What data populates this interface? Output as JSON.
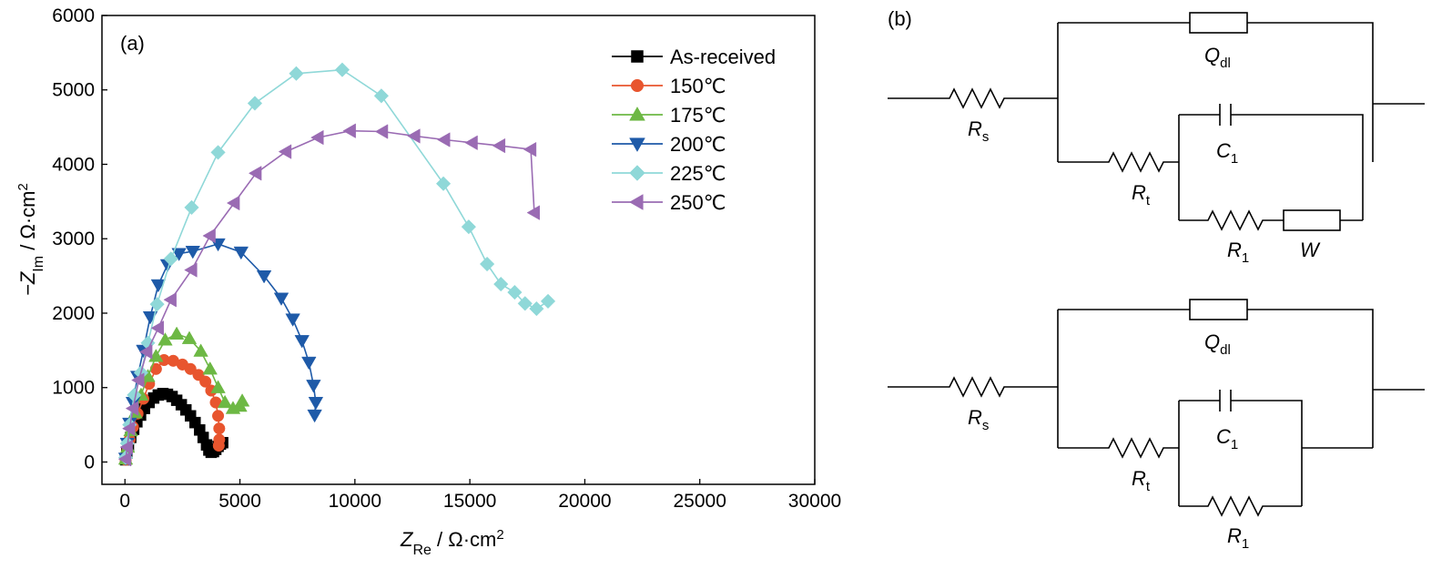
{
  "chart_data": {
    "type": "scatter",
    "panel_label": "(a)",
    "xlabel": {
      "main": "Z",
      "sub": "Re",
      "unit": " / Ω·cm",
      "sup": "2"
    },
    "ylabel": {
      "prefix": "−Z",
      "sub": "Im",
      "unit": " / Ω·cm",
      "sup": "2"
    },
    "xlim": [
      -1000,
      30000
    ],
    "ylim": [
      -300,
      6000
    ],
    "xticks": [
      0,
      5000,
      10000,
      15000,
      20000,
      25000,
      30000
    ],
    "xtick_labels": [
      "0",
      "5000",
      "10000",
      "15000",
      "20000",
      "25000",
      "30000"
    ],
    "yticks": [
      0,
      1000,
      2000,
      3000,
      4000,
      5000,
      6000
    ],
    "ytick_labels": [
      "0",
      "1000",
      "2000",
      "3000",
      "4000",
      "5000",
      "6000"
    ],
    "legend_position": "top-right",
    "series": [
      {
        "name": "As-received",
        "marker": "square",
        "color": "#000000",
        "points": [
          [
            30,
            30
          ],
          [
            80,
            120
          ],
          [
            150,
            220
          ],
          [
            250,
            330
          ],
          [
            380,
            440
          ],
          [
            520,
            540
          ],
          [
            680,
            630
          ],
          [
            850,
            720
          ],
          [
            1050,
            800
          ],
          [
            1250,
            860
          ],
          [
            1450,
            900
          ],
          [
            1650,
            920
          ],
          [
            1850,
            910
          ],
          [
            2050,
            880
          ],
          [
            2250,
            830
          ],
          [
            2450,
            770
          ],
          [
            2650,
            700
          ],
          [
            2850,
            620
          ],
          [
            3050,
            530
          ],
          [
            3250,
            430
          ],
          [
            3400,
            330
          ],
          [
            3550,
            230
          ],
          [
            3650,
            160
          ],
          [
            3750,
            130
          ],
          [
            3850,
            140
          ],
          [
            3950,
            170
          ],
          [
            4050,
            210
          ],
          [
            4150,
            240
          ],
          [
            4250,
            260
          ]
        ]
      },
      {
        "name": "150℃",
        "marker": "circle",
        "color": "#E8552E",
        "points": [
          [
            30,
            30
          ],
          [
            100,
            150
          ],
          [
            200,
            300
          ],
          [
            350,
            470
          ],
          [
            550,
            650
          ],
          [
            800,
            850
          ],
          [
            1050,
            1050
          ],
          [
            1350,
            1250
          ],
          [
            1700,
            1370
          ],
          [
            2100,
            1360
          ],
          [
            2500,
            1310
          ],
          [
            2850,
            1250
          ],
          [
            3200,
            1170
          ],
          [
            3500,
            1080
          ],
          [
            3750,
            960
          ],
          [
            3950,
            800
          ],
          [
            4050,
            620
          ],
          [
            4100,
            450
          ],
          [
            4100,
            300
          ],
          [
            4080,
            220
          ]
        ]
      },
      {
        "name": "175℃",
        "marker": "triangle-up",
        "color": "#6DB844",
        "points": [
          [
            30,
            40
          ],
          [
            120,
            200
          ],
          [
            250,
            420
          ],
          [
            450,
            660
          ],
          [
            700,
            900
          ],
          [
            1000,
            1150
          ],
          [
            1350,
            1420
          ],
          [
            1750,
            1640
          ],
          [
            2250,
            1720
          ],
          [
            2800,
            1660
          ],
          [
            3300,
            1490
          ],
          [
            3700,
            1250
          ],
          [
            4050,
            1000
          ],
          [
            4350,
            800
          ],
          [
            4700,
            720
          ],
          [
            5000,
            750
          ],
          [
            5100,
            820
          ]
        ]
      },
      {
        "name": "200℃",
        "marker": "triangle-down",
        "color": "#1E5AA8",
        "points": [
          [
            30,
            50
          ],
          [
            100,
            250
          ],
          [
            200,
            520
          ],
          [
            350,
            800
          ],
          [
            550,
            1150
          ],
          [
            800,
            1500
          ],
          [
            1100,
            1950
          ],
          [
            1450,
            2380
          ],
          [
            1850,
            2650
          ],
          [
            2350,
            2800
          ],
          [
            2950,
            2830
          ],
          [
            4050,
            2930
          ],
          [
            5050,
            2820
          ],
          [
            6050,
            2500
          ],
          [
            6800,
            2200
          ],
          [
            7300,
            1920
          ],
          [
            7700,
            1630
          ],
          [
            8000,
            1340
          ],
          [
            8200,
            1030
          ],
          [
            8300,
            800
          ],
          [
            8250,
            630
          ]
        ]
      },
      {
        "name": "225℃",
        "marker": "diamond",
        "color": "#8FD8D8",
        "points": [
          [
            30,
            60
          ],
          [
            100,
            250
          ],
          [
            200,
            500
          ],
          [
            400,
            900
          ],
          [
            700,
            1200
          ],
          [
            1000,
            1600
          ],
          [
            1400,
            2120
          ],
          [
            2000,
            2730
          ],
          [
            2900,
            3420
          ],
          [
            4050,
            4160
          ],
          [
            5650,
            4820
          ],
          [
            7450,
            5220
          ],
          [
            9450,
            5270
          ],
          [
            11150,
            4920
          ],
          [
            13850,
            3740
          ],
          [
            14950,
            3160
          ],
          [
            15750,
            2660
          ],
          [
            16350,
            2390
          ],
          [
            16950,
            2280
          ],
          [
            17400,
            2130
          ],
          [
            17900,
            2060
          ],
          [
            18400,
            2160
          ]
        ]
      },
      {
        "name": "250℃",
        "marker": "triangle-left",
        "color": "#9A6BB3",
        "points": [
          [
            30,
            40
          ],
          [
            100,
            200
          ],
          [
            200,
            450
          ],
          [
            350,
            720
          ],
          [
            600,
            1100
          ],
          [
            950,
            1480
          ],
          [
            1450,
            1800
          ],
          [
            2000,
            2180
          ],
          [
            2900,
            2580
          ],
          [
            3700,
            3040
          ],
          [
            4750,
            3480
          ],
          [
            5700,
            3880
          ],
          [
            7000,
            4170
          ],
          [
            8400,
            4360
          ],
          [
            9800,
            4450
          ],
          [
            11200,
            4440
          ],
          [
            12600,
            4380
          ],
          [
            13900,
            4330
          ],
          [
            15100,
            4290
          ],
          [
            16300,
            4250
          ],
          [
            17650,
            4200
          ],
          [
            17800,
            3350
          ]
        ]
      }
    ]
  },
  "circuits": {
    "panel_label": "(b)",
    "top": {
      "R_s": "R",
      "R_s_sub": "s",
      "Q_dl": "Q",
      "Q_dl_sub": "dl",
      "R_t": "R",
      "R_t_sub": "t",
      "C_1": "C",
      "C_1_sub": "1",
      "R_1": "R",
      "R_1_sub": "1",
      "W": "W"
    },
    "bottom": {
      "R_s": "R",
      "R_s_sub": "s",
      "Q_dl": "Q",
      "Q_dl_sub": "dl",
      "R_t": "R",
      "R_t_sub": "t",
      "C_1": "C",
      "C_1_sub": "1",
      "R_1": "R",
      "R_1_sub": "1"
    }
  }
}
